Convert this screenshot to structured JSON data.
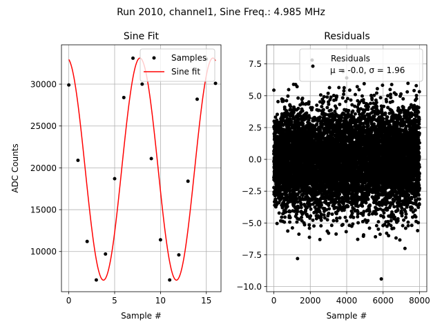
{
  "chart_data": [
    {
      "type": "scatter+line",
      "suptitle": "Run 2010, channel1, Sine Freq.: 4.985 MHz",
      "title": "Sine Fit",
      "xlabel": "Sample #",
      "ylabel": "ADC Counts",
      "xlim": [
        -0.8,
        16.6
      ],
      "ylim": [
        5200,
        34700
      ],
      "xticks": [
        0,
        5,
        10,
        15
      ],
      "yticks": [
        10000,
        15000,
        20000,
        25000,
        30000
      ],
      "grid": true,
      "legend_position": "upper-right",
      "series": [
        {
          "name": "Samples",
          "kind": "scatter",
          "color": "#000000",
          "x": [
            0,
            1,
            2,
            3,
            4,
            5,
            6,
            7,
            8,
            9,
            10,
            11,
            12,
            13,
            14,
            15,
            16
          ],
          "y": [
            29900,
            20900,
            11200,
            6600,
            9700,
            18700,
            28400,
            33100,
            30000,
            21100,
            11400,
            6600,
            9600,
            18400,
            28200,
            33000,
            30100
          ]
        },
        {
          "name": "Sine fit",
          "kind": "line",
          "color": "#ff0000",
          "model": {
            "offset": 19850,
            "amplitude": 13270,
            "omega": 0.7894,
            "phase": 1.7295
          },
          "x_range": [
            0,
            16
          ]
        }
      ]
    },
    {
      "type": "scatter",
      "title": "Residuals",
      "xlabel": "Sample #",
      "ylabel": "",
      "xlim": [
        -400,
        8400
      ],
      "ylim": [
        -10.4,
        9.0
      ],
      "xticks": [
        0,
        2000,
        4000,
        6000,
        8000
      ],
      "yticks": [
        -10.0,
        -7.5,
        -5.0,
        -2.5,
        0.0,
        2.5,
        5.0,
        7.5
      ],
      "grid": true,
      "legend_position": "upper-right",
      "legend_label": "Residuals",
      "legend_stats": "μ = -0.0, σ = 1.96",
      "series": [
        {
          "name": "Residuals",
          "color": "#000000",
          "n_points": 8000,
          "mean": 0.0,
          "std": 1.96,
          "clip_range": [
            -6.4,
            6.1
          ],
          "outliers": [
            {
              "x": 2100,
              "y": 7.8
            },
            {
              "x": 3800,
              "y": 6.9
            },
            {
              "x": 1300,
              "y": -7.8
            },
            {
              "x": 7200,
              "y": -7.0
            },
            {
              "x": 5900,
              "y": -9.4
            },
            {
              "x": 4000,
              "y": 6.4
            },
            {
              "x": 6300,
              "y": -6.0
            }
          ]
        }
      ]
    }
  ]
}
